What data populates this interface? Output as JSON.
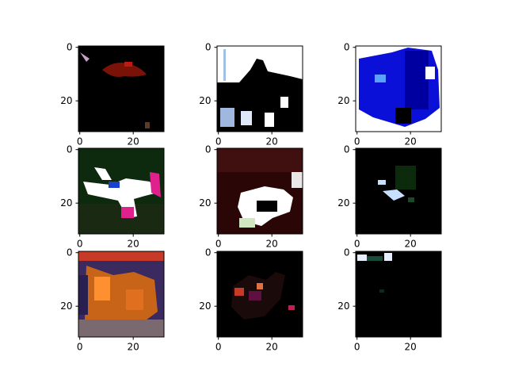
{
  "chart_data": {
    "type": "heatmap",
    "layout": "3x3 image grid",
    "image_size": [
      32,
      32
    ],
    "grid": false,
    "panels": [
      {
        "x_ticks": [
          0,
          20
        ],
        "y_ticks": [
          0,
          20
        ],
        "xlim": [
          -0.5,
          31.5
        ],
        "ylim": [
          31.5,
          -0.5
        ],
        "dominant_colors": [
          "#000000",
          "#7a1208",
          "#c8a0c8"
        ]
      },
      {
        "x_ticks": [
          0,
          20
        ],
        "y_ticks": [
          0,
          20
        ],
        "xlim": [
          -0.5,
          31.5
        ],
        "ylim": [
          31.5,
          -0.5
        ],
        "dominant_colors": [
          "#ffffff",
          "#000000",
          "#a0b8e0"
        ]
      },
      {
        "x_ticks": [
          0,
          20
        ],
        "y_ticks": [
          0,
          20
        ],
        "xlim": [
          -0.5,
          31.5
        ],
        "ylim": [
          31.5,
          -0.5
        ],
        "dominant_colors": [
          "#ffffff",
          "#0a10d8",
          "#000000"
        ]
      },
      {
        "x_ticks": [
          0,
          20
        ],
        "y_ticks": [
          0,
          20
        ],
        "xlim": [
          -0.5,
          31.5
        ],
        "ylim": [
          31.5,
          -0.5
        ],
        "dominant_colors": [
          "#0e2a0e",
          "#ffffff",
          "#e0208c",
          "#1a40d0"
        ]
      },
      {
        "x_ticks": [
          0,
          20
        ],
        "y_ticks": [
          0,
          20
        ],
        "xlim": [
          -0.5,
          31.5
        ],
        "ylim": [
          31.5,
          -0.5
        ],
        "dominant_colors": [
          "#2a0606",
          "#ffffff",
          "#000000"
        ]
      },
      {
        "x_ticks": [
          0,
          20
        ],
        "y_ticks": [
          0,
          20
        ],
        "xlim": [
          -0.5,
          31.5
        ],
        "ylim": [
          31.5,
          -0.5
        ],
        "dominant_colors": [
          "#000000",
          "#0c2a0c",
          "#c8e0ff"
        ]
      },
      {
        "x_ticks": [
          0,
          20
        ],
        "y_ticks": [
          0,
          20
        ],
        "xlim": [
          -0.5,
          31.5
        ],
        "ylim": [
          31.5,
          -0.5
        ],
        "dominant_colors": [
          "#c86418",
          "#ff9030",
          "#3a2a60",
          "#7a6a70"
        ]
      },
      {
        "x_ticks": [
          0,
          20
        ],
        "y_ticks": [
          0,
          20
        ],
        "xlim": [
          -0.5,
          31.5
        ],
        "ylim": [
          31.5,
          -0.5
        ],
        "dominant_colors": [
          "#000000",
          "#c83a28",
          "#601040"
        ]
      },
      {
        "x_ticks": [
          0,
          20
        ],
        "y_ticks": [
          0,
          20
        ],
        "xlim": [
          -0.5,
          31.5
        ],
        "ylim": [
          31.5,
          -0.5
        ],
        "dominant_colors": [
          "#000000",
          "#e8f0ff",
          "#1a4a3a"
        ]
      }
    ]
  }
}
